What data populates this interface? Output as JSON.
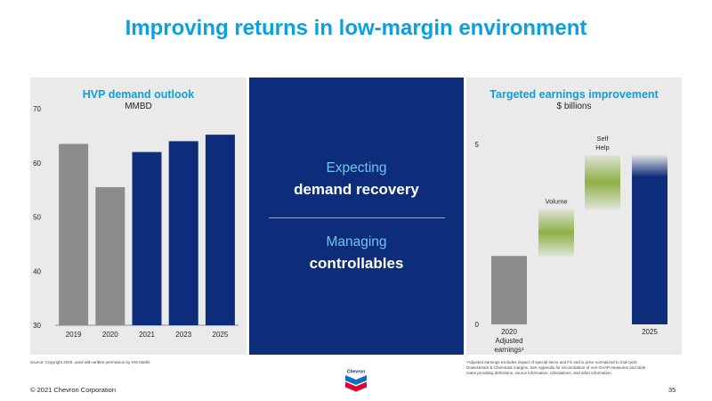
{
  "title": "Improving returns in low-margin environment",
  "left_panel": {
    "title": "HVP demand outlook",
    "subtitle": "MMBD",
    "source": "Source: Copyright 2020, used with written permission by IHS Markit"
  },
  "center_panel": {
    "line1_light": "Expecting",
    "line1_bold": "demand recovery",
    "line2_light": "Managing",
    "line2_bold": "controllables"
  },
  "right_panel": {
    "title": "Targeted earnings improvement",
    "subtitle": "$ billions",
    "footnote_lines": [
      "¹Adjusted earnings excludes impact of special items and FX and is price normalized to mid-cycle",
      "Downstream & Chemicals margins. See Appendix for reconciliation of non-GAAP measures and slide",
      "notes providing definitions, source information, calculations, and other information."
    ]
  },
  "footer": {
    "copyright": "© 2021 Chevron Corporation",
    "page_number": "35",
    "logo_text": "Chevron"
  },
  "colors": {
    "accent_blue": "#0b9fe0",
    "navy": "#0d2d7a",
    "gray_bar": "#8c8c8c",
    "green": "#8db046",
    "panel_bg": "#eaeaea"
  },
  "chart_data": [
    {
      "type": "bar",
      "title": "HVP demand outlook",
      "ylabel": "MMBD",
      "categories": [
        "2019",
        "2020",
        "2021",
        "2023",
        "2025"
      ],
      "values": [
        63.5,
        55.5,
        62,
        64,
        65.2
      ],
      "bar_colors": [
        "#8c8c8c",
        "#8c8c8c",
        "#0d2d7a",
        "#0d2d7a",
        "#0d2d7a"
      ],
      "ylim": [
        30,
        70
      ],
      "yticks": [
        30,
        40,
        50,
        60,
        70
      ],
      "grid": false
    },
    {
      "type": "bar",
      "subtype": "waterfall",
      "title": "Targeted earnings improvement",
      "ylabel": "$ billions",
      "categories": [
        "2020 Adjusted earnings¹",
        "Volume",
        "Self Help",
        "2025"
      ],
      "x_labels": [
        [
          "2020",
          "Adjusted",
          "earnings¹"
        ],
        [],
        [],
        [
          "2025"
        ]
      ],
      "bar_labels": [
        [],
        [
          "Volume"
        ],
        [
          "Self",
          "Help"
        ],
        []
      ],
      "bars": [
        {
          "start": 0,
          "end": 1.9,
          "color": "#8c8c8c",
          "style": "solid"
        },
        {
          "start": 1.9,
          "end": 3.2,
          "color": "#8db046",
          "style": "fade"
        },
        {
          "start": 3.2,
          "end": 4.7,
          "color": "#8db046",
          "style": "fade"
        },
        {
          "start": 0,
          "end": 4.7,
          "color": "#0d2d7a",
          "style": "fade-top"
        }
      ],
      "ylim": [
        0,
        5
      ],
      "yticks": [
        0,
        5
      ],
      "grid": false
    }
  ]
}
